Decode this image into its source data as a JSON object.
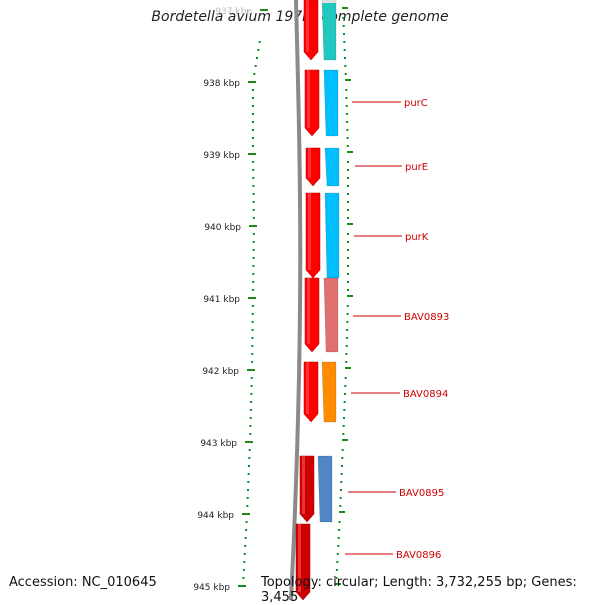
{
  "title": "Bordetella avium 197N, complete genome",
  "accession": "Accession: NC_010645",
  "topology": "Topology: circular; Length: 3,732,255 bp; Genes: 3,455",
  "colors": {
    "forward": "#ff0000",
    "forward_dark": "#cc0000",
    "backbone": "#8a8a8a",
    "tick": "#1a8a1a",
    "label": "#cc0000",
    "label_line": "#cc0000"
  },
  "ticks": [
    {
      "label": "937 kbp"
    },
    {
      "label": "938 kbp"
    },
    {
      "label": "939 kbp"
    },
    {
      "label": "940 kbp"
    },
    {
      "label": "941 kbp"
    },
    {
      "label": "942 kbp"
    },
    {
      "label": "943 kbp"
    },
    {
      "label": "944 kbp"
    },
    {
      "label": "945 kbp"
    }
  ],
  "genes": [
    {
      "name": "purC",
      "color": "#00bfff"
    },
    {
      "name": "purE",
      "color": "#00bfff"
    },
    {
      "name": "purK",
      "color": "#00bfff"
    },
    {
      "name": "BAV0893",
      "color": "#e07070"
    },
    {
      "name": "BAV0894",
      "color": "#ff8c00"
    },
    {
      "name": "BAV0895",
      "color": "#4f86c6"
    },
    {
      "name": "BAV0896",
      "color": "#ff0000"
    }
  ]
}
